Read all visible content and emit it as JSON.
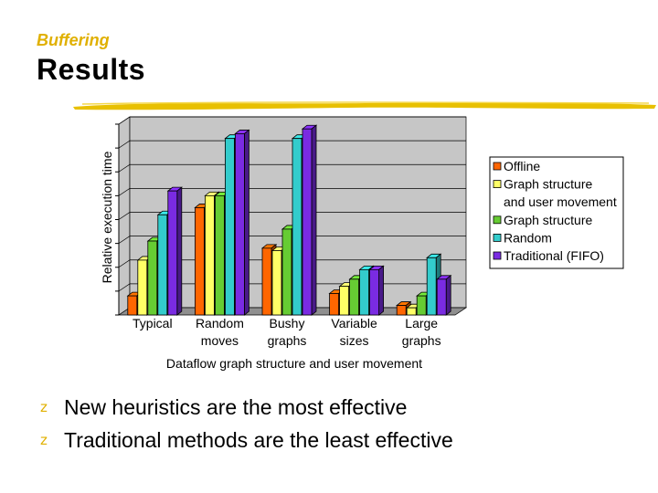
{
  "header": {
    "kicker": "Buffering",
    "title": "Results"
  },
  "colors": {
    "accent": "#e0b000",
    "series": [
      "#ff6600",
      "#ffff66",
      "#66cc33",
      "#33cccc",
      "#7a2be2"
    ]
  },
  "chart_data": {
    "type": "bar",
    "title": "",
    "xlabel": "Dataflow graph structure and user movement",
    "ylabel": "Relative execution time",
    "categories": [
      [
        "Typical"
      ],
      [
        "Random",
        "moves"
      ],
      [
        "Bushy",
        "graphs"
      ],
      [
        "Variable",
        "sizes"
      ],
      [
        "Large",
        "graphs"
      ]
    ],
    "series": [
      {
        "name": "Offline",
        "values": [
          0.8,
          4.5,
          2.8,
          0.9,
          0.4
        ]
      },
      {
        "name": "Graph structure and user movement",
        "values": [
          2.3,
          5.0,
          2.7,
          1.2,
          0.3
        ]
      },
      {
        "name": "Graph structure",
        "values": [
          3.1,
          5.0,
          3.6,
          1.5,
          0.8
        ]
      },
      {
        "name": "Random",
        "values": [
          4.2,
          7.4,
          7.4,
          1.9,
          2.4
        ]
      },
      {
        "name": "Traditional (FIFO)",
        "values": [
          5.2,
          7.6,
          7.8,
          1.9,
          1.5
        ]
      }
    ],
    "ylim": [
      0,
      8
    ],
    "grid": true,
    "legend_position": "right"
  },
  "bullets": [
    {
      "icon": "z",
      "text": "New heuristics are the most effective"
    },
    {
      "icon": "z",
      "text": "Traditional methods are the least effective"
    }
  ]
}
